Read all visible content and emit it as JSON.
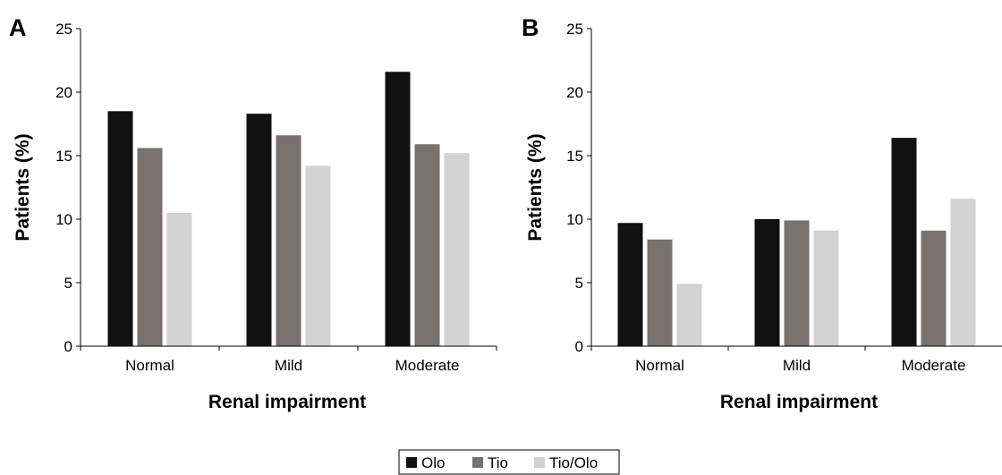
{
  "chart_data": [
    {
      "panel": "A",
      "type": "bar",
      "categories": [
        "Normal",
        "Mild",
        "Moderate"
      ],
      "series": [
        {
          "name": "Olo",
          "values": [
            18.5,
            18.3,
            21.6
          ]
        },
        {
          "name": "Tio",
          "values": [
            15.6,
            16.6,
            15.9
          ]
        },
        {
          "name": "Tio/Olo",
          "values": [
            10.5,
            14.2,
            15.2
          ]
        }
      ],
      "xlabel": "Renal impairment",
      "ylabel": "Patients (%)",
      "ylim": [
        0,
        25
      ],
      "yticks": [
        0,
        5,
        10,
        15,
        20,
        25
      ],
      "grid": false
    },
    {
      "panel": "B",
      "type": "bar",
      "categories": [
        "Normal",
        "Mild",
        "Moderate"
      ],
      "series": [
        {
          "name": "Olo",
          "values": [
            9.7,
            10.0,
            16.4
          ]
        },
        {
          "name": "Tio",
          "values": [
            8.4,
            9.9,
            9.1
          ]
        },
        {
          "name": "Tio/Olo",
          "values": [
            4.9,
            9.1,
            11.6
          ]
        }
      ],
      "xlabel": "Renal impairment",
      "ylabel": "Patients (%)",
      "ylim": [
        0,
        25
      ],
      "yticks": [
        0,
        5,
        10,
        15,
        20,
        25
      ],
      "grid": false
    }
  ],
  "legend": {
    "placement": "bottom-center",
    "items": [
      {
        "label": "Olo",
        "color": "#111111"
      },
      {
        "label": "Tio",
        "color": "#77716f"
      },
      {
        "label": "Tio/Olo",
        "color": "#d3d2d2"
      }
    ]
  }
}
